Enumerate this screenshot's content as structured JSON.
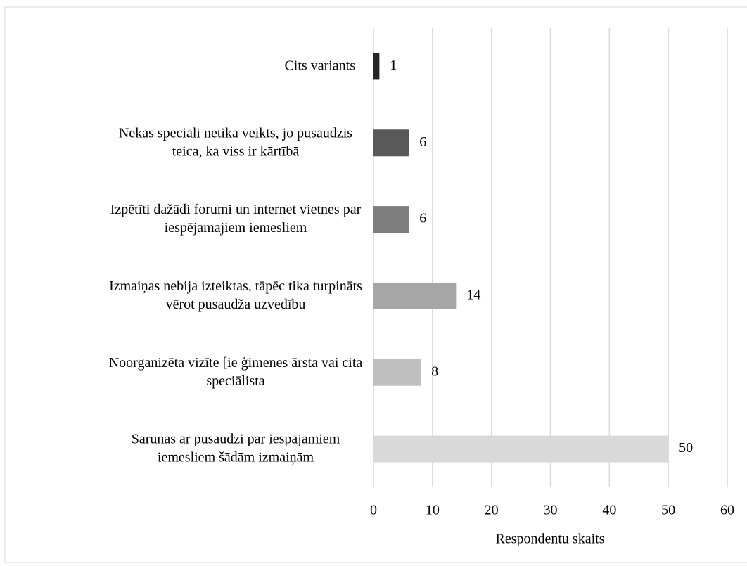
{
  "chart_data": {
    "type": "bar",
    "orientation": "horizontal",
    "categories": [
      "Cits variants",
      "Nekas speciāli netika veikts, jo pusaudzis\nteica, ka viss ir kārtībā",
      "Izpētīti dažādi forumi un internet vietnes par\niespējamajiem iemesliem",
      "Izmaiņas nebija izteiktas, tāpēc tika turpināts\nvērot pusaudža uzvedību",
      "Noorganizēta vizīte [ie ģimenes ārsta vai cita\nspeciālista",
      "Sarunas ar pusaudzi par iespājamiem\niemesliem šādām izmaiņām"
    ],
    "values": [
      1,
      6,
      6,
      14,
      8,
      50
    ],
    "colors": [
      "#262626",
      "#595959",
      "#7f7f7f",
      "#a6a6a6",
      "#bfbfbf",
      "#d9d9d9"
    ],
    "xlabel": "Respondentu skaits",
    "xlim": [
      0,
      60
    ],
    "xticks": [
      0,
      10,
      20,
      30,
      40,
      50,
      60
    ],
    "grid": true
  }
}
